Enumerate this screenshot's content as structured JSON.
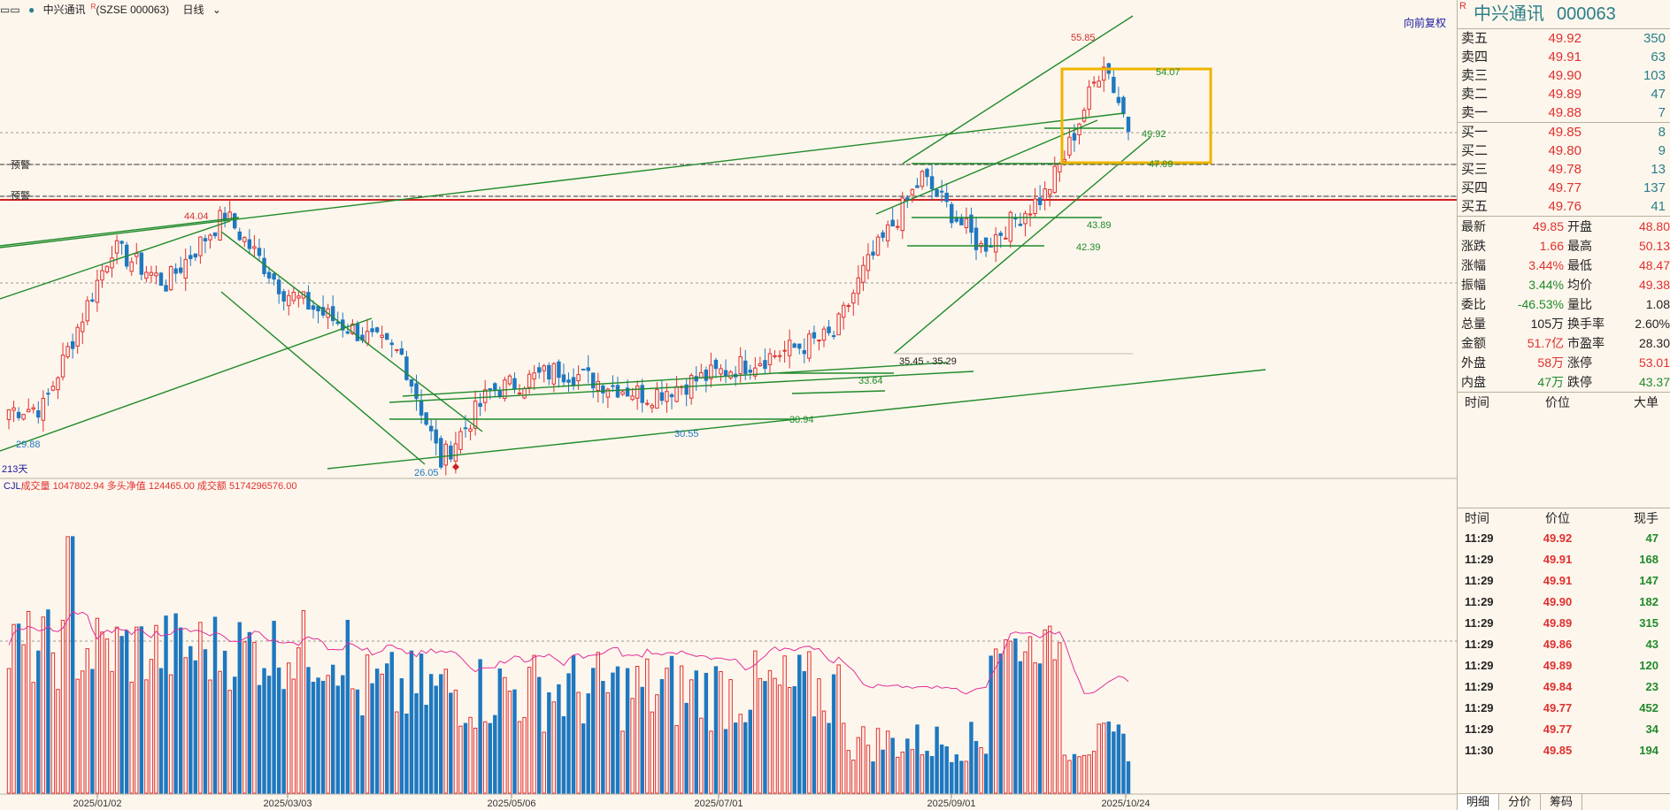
{
  "header": {
    "menu_icon": "menu-icon",
    "stock_label": "中兴通讯",
    "r_mark": "R",
    "code": "(SZSE 000063)",
    "period": "日线",
    "restore": "向前复权",
    "days": "213天"
  },
  "alerts": [
    "预警",
    "预警"
  ],
  "volume_header": {
    "indicator": "CJL",
    "items": [
      {
        "label": "成交量",
        "value": "1047802.94"
      },
      {
        "label": "多头净值",
        "value": "124465.00"
      },
      {
        "label": "成交额",
        "value": "5174296576.00"
      }
    ]
  },
  "annotations": {
    "high_44": "44.04",
    "low_2988": "29.88",
    "low_2605": "26.05",
    "low_3055": "30.55",
    "lvl_3094": "30.94",
    "lvl_3364": "33.64",
    "range_35": "35.45 - 35.29",
    "lvl_4239": "42.39",
    "lvl_4389": "43.89",
    "lvl_4799": "47.99",
    "lvl_4992": "49.92",
    "lvl_5407": "54.07",
    "high_5585": "55.85"
  },
  "chart_data": {
    "type": "candlestick",
    "x_ticks": [
      "2025/01/02",
      "2025/03/03",
      "2025/05/06",
      "2025/07/01",
      "2025/09/01",
      "2025/10/24"
    ],
    "price_ylim": [
      25.5,
      57.5
    ],
    "colors": {
      "up": "#e03030",
      "down": "#1e78c0",
      "line": "#1f8a2a",
      "box": "#f0b400",
      "ma": "#e0309a"
    },
    "key_points": [
      {
        "label": "44.04",
        "value": 44.04
      },
      {
        "label": "29.88",
        "value": 29.88
      },
      {
        "label": "26.05",
        "value": 26.05
      },
      {
        "label": "30.55",
        "value": 30.55
      },
      {
        "label": "55.85",
        "value": 55.85
      }
    ],
    "horizontal_levels": [
      30.94,
      33.64,
      35.45,
      35.29,
      42.39,
      43.89,
      47.99,
      49.92,
      54.07
    ],
    "segments": [
      {
        "n": 8,
        "s": 30.2,
        "e": 30.4
      },
      {
        "n": 14,
        "s": 30.4,
        "e": 41.5
      },
      {
        "n": 11,
        "s": 41.5,
        "e": 39.0
      },
      {
        "n": 12,
        "s": 39.0,
        "e": 43.8
      },
      {
        "n": 12,
        "s": 43.8,
        "e": 38.5
      },
      {
        "n": 10,
        "s": 38.5,
        "e": 36.5
      },
      {
        "n": 14,
        "s": 36.5,
        "e": 34.0
      },
      {
        "n": 8,
        "s": 34.0,
        "e": 26.6
      },
      {
        "n": 10,
        "s": 26.6,
        "e": 31.5
      },
      {
        "n": 14,
        "s": 31.5,
        "e": 33.0
      },
      {
        "n": 18,
        "s": 33.0,
        "e": 31.2
      },
      {
        "n": 20,
        "s": 31.2,
        "e": 33.4
      },
      {
        "n": 18,
        "s": 33.4,
        "e": 35.4
      },
      {
        "n": 6,
        "s": 35.4,
        "e": 39.8
      },
      {
        "n": 12,
        "s": 39.8,
        "e": 46.4
      },
      {
        "n": 12,
        "s": 46.4,
        "e": 41.5
      },
      {
        "n": 13,
        "s": 41.5,
        "e": 45.2
      },
      {
        "n": 4,
        "s": 45.2,
        "e": 47.8
      },
      {
        "n": 8,
        "s": 47.8,
        "e": 54.6
      },
      {
        "n": 5,
        "s": 54.6,
        "e": 49.85
      }
    ],
    "volume_ma_note": "成交量"
  },
  "quote": {
    "name": "中兴通讯",
    "code": "000063",
    "r_mark": "R",
    "asks": [
      {
        "label": "卖五",
        "price": "49.92",
        "vol": "350"
      },
      {
        "label": "卖四",
        "price": "49.91",
        "vol": "63"
      },
      {
        "label": "卖三",
        "price": "49.90",
        "vol": "103"
      },
      {
        "label": "卖二",
        "price": "49.89",
        "vol": "47"
      },
      {
        "label": "卖一",
        "price": "49.88",
        "vol": "7"
      }
    ],
    "bids": [
      {
        "label": "买一",
        "price": "49.85",
        "vol": "8"
      },
      {
        "label": "买二",
        "price": "49.80",
        "vol": "9"
      },
      {
        "label": "买三",
        "price": "49.78",
        "vol": "13"
      },
      {
        "label": "买四",
        "price": "49.77",
        "vol": "137"
      },
      {
        "label": "买五",
        "price": "49.76",
        "vol": "41"
      }
    ],
    "stats": [
      [
        {
          "k": "最新",
          "v": "49.85",
          "c": "red"
        },
        {
          "k": "开盘",
          "v": "48.80",
          "c": "red"
        }
      ],
      [
        {
          "k": "涨跌",
          "v": "1.66",
          "c": "red"
        },
        {
          "k": "最高",
          "v": "50.13",
          "c": "red"
        }
      ],
      [
        {
          "k": "涨幅",
          "v": "3.44%",
          "c": "red"
        },
        {
          "k": "最低",
          "v": "48.47",
          "c": "red"
        }
      ],
      [
        {
          "k": "振幅",
          "v": "3.44%",
          "c": "green"
        },
        {
          "k": "均价",
          "v": "49.38",
          "c": "red"
        }
      ],
      [
        {
          "k": "委比",
          "v": "-46.53%",
          "c": "green"
        },
        {
          "k": "量比",
          "v": "1.08",
          "c": "blk"
        }
      ],
      [
        {
          "k": "总量",
          "v": "105万",
          "c": "blk"
        },
        {
          "k": "换手率",
          "v": "2.60%",
          "c": "blk"
        }
      ],
      [
        {
          "k": "金额",
          "v": "51.7亿",
          "c": "red"
        },
        {
          "k": "市盈率",
          "v": "28.30",
          "c": "blk"
        }
      ],
      [
        {
          "k": "外盘",
          "v": "58万",
          "c": "red"
        },
        {
          "k": "涨停",
          "v": "53.01",
          "c": "red"
        }
      ],
      [
        {
          "k": "内盘",
          "v": "47万",
          "c": "green"
        },
        {
          "k": "跌停",
          "v": "43.37",
          "c": "green"
        }
      ]
    ],
    "big_head": [
      "时间",
      "价位",
      "大单"
    ],
    "tick_head": [
      "时间",
      "价位",
      "现手"
    ],
    "ticks": [
      {
        "t": "11:29",
        "p": "49.92",
        "v": "47"
      },
      {
        "t": "11:29",
        "p": "49.91",
        "v": "168"
      },
      {
        "t": "11:29",
        "p": "49.91",
        "v": "147"
      },
      {
        "t": "11:29",
        "p": "49.90",
        "v": "182"
      },
      {
        "t": "11:29",
        "p": "49.89",
        "v": "315"
      },
      {
        "t": "11:29",
        "p": "49.86",
        "v": "43"
      },
      {
        "t": "11:29",
        "p": "49.89",
        "v": "120"
      },
      {
        "t": "11:29",
        "p": "49.84",
        "v": "23"
      },
      {
        "t": "11:29",
        "p": "49.77",
        "v": "452"
      },
      {
        "t": "11:29",
        "p": "49.77",
        "v": "34"
      },
      {
        "t": "11:30",
        "p": "49.85",
        "v": "194"
      }
    ],
    "tabs": [
      "明细",
      "分价",
      "筹码"
    ]
  }
}
